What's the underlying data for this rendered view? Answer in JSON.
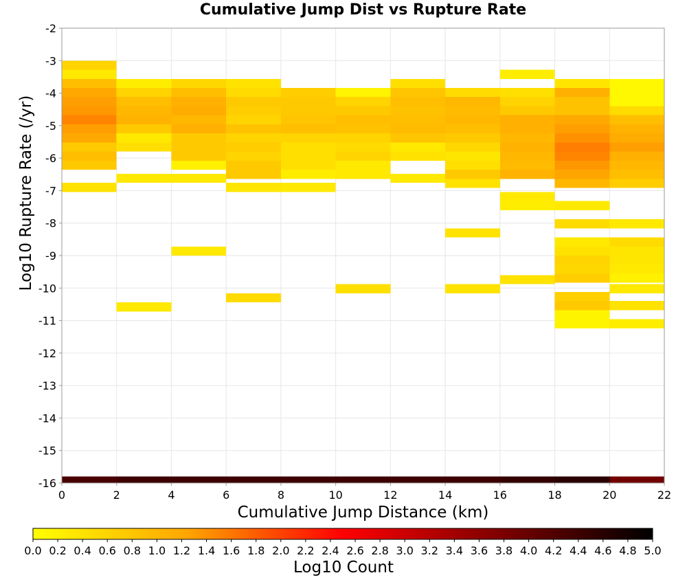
{
  "chart_data": {
    "type": "heatmap",
    "title": "Cumulative Jump Dist vs Rupture Rate",
    "xlabel": "Cumulative Jump Distance (km)",
    "ylabel": "Log10 Rupture Rate (/yr)",
    "xlim": [
      0,
      22
    ],
    "ylim": [
      -16,
      -2
    ],
    "x_ticks": [
      "0",
      "2",
      "4",
      "6",
      "8",
      "10",
      "12",
      "14",
      "16",
      "18",
      "20",
      "22"
    ],
    "y_ticks": [
      "-2",
      "-3",
      "-4",
      "-5",
      "-6",
      "-7",
      "-8",
      "-9",
      "-10",
      "-11",
      "-12",
      "-13",
      "-14",
      "-15",
      "-16"
    ],
    "x_bin_width": 2,
    "y_bin_height": 0.28,
    "grid": true,
    "colorbar": {
      "label": "Log10 Count",
      "range": [
        0,
        5
      ],
      "ticks": [
        "0.0",
        "0.2",
        "0.4",
        "0.6",
        "0.8",
        "1.0",
        "1.2",
        "1.4",
        "1.6",
        "1.8",
        "2.0",
        "2.2",
        "2.4",
        "2.6",
        "2.8",
        "3.0",
        "3.2",
        "3.4",
        "3.6",
        "3.8",
        "4.0",
        "4.2",
        "4.4",
        "4.6",
        "4.8",
        "5.0"
      ],
      "colors": [
        "#ffff00",
        "#ffa500",
        "#ff0000",
        "#800000",
        "#000000"
      ],
      "position": "bottom"
    },
    "cells": [
      [
        1,
        -3.14,
        0.6
      ],
      [
        1,
        -3.42,
        0.3
      ],
      [
        1,
        -3.7,
        0.9
      ],
      [
        1,
        -3.98,
        1.2
      ],
      [
        1,
        -4.26,
        1.3
      ],
      [
        1,
        -4.54,
        1.35
      ],
      [
        1,
        -4.82,
        1.5
      ],
      [
        1,
        -5.1,
        1.3
      ],
      [
        1,
        -5.38,
        1.2
      ],
      [
        1,
        -5.66,
        0.75
      ],
      [
        1,
        -5.94,
        0.9
      ],
      [
        1,
        -6.22,
        0.75
      ],
      [
        1,
        -6.9,
        0.4
      ],
      [
        3,
        -3.7,
        0.25
      ],
      [
        3,
        -3.98,
        0.6
      ],
      [
        3,
        -4.26,
        0.9
      ],
      [
        3,
        -4.54,
        1.0
      ],
      [
        3,
        -4.82,
        1.05
      ],
      [
        3,
        -5.1,
        0.75
      ],
      [
        3,
        -5.38,
        0.3
      ],
      [
        3,
        -5.66,
        0.45
      ],
      [
        3,
        -6.62,
        0.3
      ],
      [
        3,
        -10.58,
        0.3
      ],
      [
        5,
        -3.7,
        0.55
      ],
      [
        5,
        -3.98,
        0.9
      ],
      [
        5,
        -4.26,
        1.1
      ],
      [
        5,
        -4.54,
        1.15
      ],
      [
        5,
        -4.82,
        1.0
      ],
      [
        5,
        -5.1,
        1.1
      ],
      [
        5,
        -5.38,
        0.75
      ],
      [
        5,
        -5.66,
        0.75
      ],
      [
        5,
        -5.94,
        0.75
      ],
      [
        5,
        -6.22,
        0.2
      ],
      [
        5,
        -6.62,
        0.3
      ],
      [
        5,
        -8.86,
        0.3
      ],
      [
        7,
        -3.7,
        0.4
      ],
      [
        7,
        -3.98,
        0.5
      ],
      [
        7,
        -4.26,
        0.75
      ],
      [
        7,
        -4.54,
        0.7
      ],
      [
        7,
        -4.82,
        0.6
      ],
      [
        7,
        -5.1,
        0.85
      ],
      [
        7,
        -5.38,
        0.6
      ],
      [
        7,
        -5.66,
        0.7
      ],
      [
        7,
        -5.94,
        0.6
      ],
      [
        7,
        -6.22,
        0.75
      ],
      [
        7,
        -6.5,
        0.75
      ],
      [
        7,
        -6.9,
        0.35
      ],
      [
        7,
        -10.3,
        0.5
      ],
      [
        9,
        -3.98,
        0.7
      ],
      [
        9,
        -4.26,
        0.75
      ],
      [
        9,
        -4.54,
        0.75
      ],
      [
        9,
        -4.82,
        0.8
      ],
      [
        9,
        -5.1,
        0.9
      ],
      [
        9,
        -5.38,
        0.6
      ],
      [
        9,
        -5.66,
        0.45
      ],
      [
        9,
        -5.94,
        0.45
      ],
      [
        9,
        -6.22,
        0.45
      ],
      [
        9,
        -6.5,
        0.25
      ],
      [
        9,
        -6.9,
        0.3
      ],
      [
        11,
        -3.98,
        0.15
      ],
      [
        11,
        -4.26,
        0.6
      ],
      [
        11,
        -4.54,
        0.75
      ],
      [
        11,
        -4.82,
        0.9
      ],
      [
        11,
        -5.1,
        0.85
      ],
      [
        11,
        -5.38,
        0.6
      ],
      [
        11,
        -5.66,
        0.5
      ],
      [
        11,
        -5.94,
        0.6
      ],
      [
        11,
        -6.22,
        0.3
      ],
      [
        11,
        -6.5,
        0.3
      ],
      [
        11,
        -10.02,
        0.45
      ],
      [
        13,
        -3.7,
        0.45
      ],
      [
        13,
        -3.98,
        0.8
      ],
      [
        13,
        -4.26,
        0.9
      ],
      [
        13,
        -4.54,
        0.85
      ],
      [
        13,
        -4.82,
        0.9
      ],
      [
        13,
        -5.1,
        0.95
      ],
      [
        13,
        -5.38,
        0.8
      ],
      [
        13,
        -5.66,
        0.3
      ],
      [
        13,
        -5.94,
        0.4
      ],
      [
        13,
        -6.62,
        0.3
      ],
      [
        15,
        -3.98,
        0.5
      ],
      [
        15,
        -4.26,
        1.0
      ],
      [
        15,
        -4.54,
        0.95
      ],
      [
        15,
        -4.82,
        1.0
      ],
      [
        15,
        -5.1,
        0.9
      ],
      [
        15,
        -5.38,
        0.75
      ],
      [
        15,
        -5.66,
        0.55
      ],
      [
        15,
        -5.94,
        0.35
      ],
      [
        15,
        -6.22,
        0.45
      ],
      [
        15,
        -6.5,
        0.75
      ],
      [
        15,
        -6.78,
        0.4
      ],
      [
        15,
        -8.3,
        0.4
      ],
      [
        15,
        -10.02,
        0.4
      ],
      [
        17,
        -3.42,
        0.25
      ],
      [
        17,
        -3.98,
        0.45
      ],
      [
        17,
        -4.26,
        0.6
      ],
      [
        17,
        -4.54,
        0.75
      ],
      [
        17,
        -4.82,
        1.1
      ],
      [
        17,
        -5.1,
        1.1
      ],
      [
        17,
        -5.38,
        1.0
      ],
      [
        17,
        -5.66,
        1.05
      ],
      [
        17,
        -5.94,
        1.0
      ],
      [
        17,
        -6.22,
        0.95
      ],
      [
        17,
        -6.5,
        1.05
      ],
      [
        17,
        -7.18,
        0.3
      ],
      [
        17,
        -7.46,
        0.25
      ],
      [
        17,
        -9.74,
        0.4
      ],
      [
        19,
        -3.7,
        0.35
      ],
      [
        19,
        -3.98,
        1.1
      ],
      [
        19,
        -4.26,
        0.85
      ],
      [
        19,
        -4.54,
        0.85
      ],
      [
        19,
        -4.82,
        1.2
      ],
      [
        19,
        -5.1,
        1.3
      ],
      [
        19,
        -5.38,
        1.4
      ],
      [
        19,
        -5.66,
        1.55
      ],
      [
        19,
        -5.94,
        1.5
      ],
      [
        19,
        -6.22,
        1.35
      ],
      [
        19,
        -6.5,
        1.25
      ],
      [
        19,
        -6.78,
        1.0
      ],
      [
        19,
        -7.46,
        0.3
      ],
      [
        19,
        -8.02,
        0.5
      ],
      [
        19,
        -8.58,
        0.3
      ],
      [
        19,
        -8.86,
        0.4
      ],
      [
        19,
        -9.14,
        0.6
      ],
      [
        19,
        -9.42,
        0.55
      ],
      [
        19,
        -9.7,
        0.7
      ],
      [
        19,
        -10.26,
        0.65
      ],
      [
        19,
        -10.54,
        0.75
      ],
      [
        19,
        -10.82,
        0.15
      ],
      [
        19,
        -11.1,
        0.15
      ],
      [
        21,
        -3.7,
        0.1
      ],
      [
        21,
        -3.98,
        0.1
      ],
      [
        21,
        -4.26,
        0.1
      ],
      [
        21,
        -4.54,
        0.5
      ],
      [
        21,
        -4.82,
        0.9
      ],
      [
        21,
        -5.1,
        1.05
      ],
      [
        21,
        -5.38,
        1.15
      ],
      [
        21,
        -5.66,
        1.3
      ],
      [
        21,
        -5.94,
        1.1
      ],
      [
        21,
        -6.22,
        1.0
      ],
      [
        21,
        -6.5,
        0.9
      ],
      [
        21,
        -6.78,
        0.7
      ],
      [
        21,
        -8.02,
        0.3
      ],
      [
        21,
        -8.58,
        0.5
      ],
      [
        21,
        -8.86,
        0.35
      ],
      [
        21,
        -9.14,
        0.35
      ],
      [
        21,
        -9.42,
        0.3
      ],
      [
        21,
        -9.7,
        0.2
      ],
      [
        21,
        -10.02,
        0.3
      ],
      [
        21,
        -10.54,
        0.4
      ],
      [
        21,
        -11.1,
        0.25
      ]
    ],
    "bottom_row": {
      "y": -15.94,
      "bins": [
        [
          1,
          4.3
        ],
        [
          3,
          4.4
        ],
        [
          5,
          4.4
        ],
        [
          7,
          4.4
        ],
        [
          9,
          4.4
        ],
        [
          11,
          4.4
        ],
        [
          13,
          4.4
        ],
        [
          15,
          4.4
        ],
        [
          17,
          4.5
        ],
        [
          19,
          4.6
        ],
        [
          21,
          3.9
        ]
      ]
    }
  }
}
